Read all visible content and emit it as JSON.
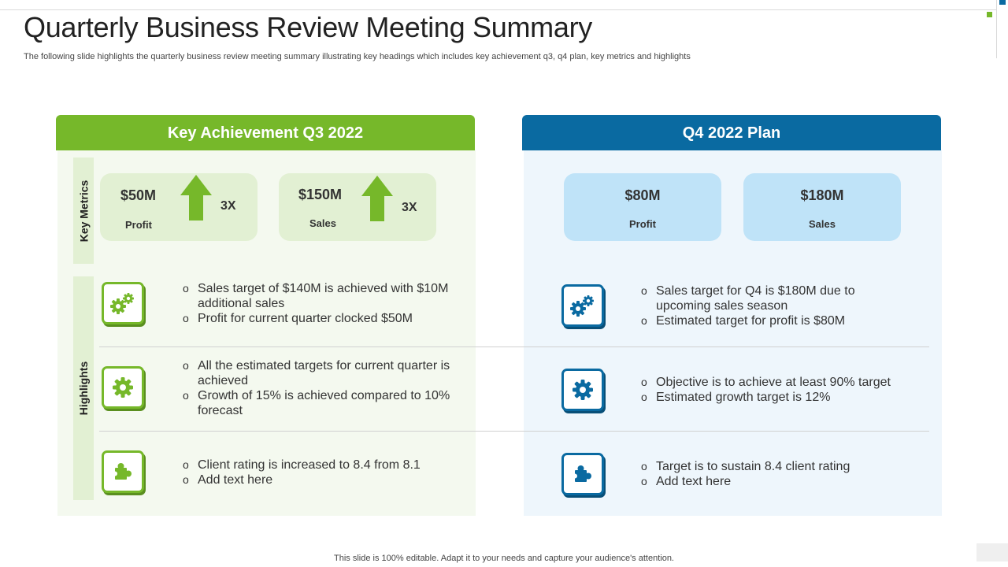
{
  "page": {
    "title": "Quarterly Business Review Meeting Summary",
    "subtitle": "The following slide highlights the quarterly business review meeting summary illustrating key headings which includes key achievement q3, q4 plan, key metrics and highlights",
    "footer": "This slide is 100% editable. Adapt it to your needs and capture your audience's attention."
  },
  "labels": {
    "key_metrics": "Key Metrics",
    "highlights": "Highlights"
  },
  "left": {
    "header": "Key Achievement Q3 2022",
    "metrics": [
      {
        "value": "$50M",
        "label": "Profit",
        "multiplier": "3X"
      },
      {
        "value": "$150M",
        "label": "Sales",
        "multiplier": "3X"
      }
    ],
    "highlights": [
      {
        "icon": "gears-icon",
        "bullets": [
          "Sales target of $140M is achieved with $10M additional sales",
          " Profit for current  quarter clocked $50M"
        ]
      },
      {
        "icon": "gear-icon",
        "bullets": [
          "All the estimated targets for current quarter is achieved",
          "Growth  of 15% is achieved compared to 10% forecast"
        ]
      },
      {
        "icon": "puzzle-icon",
        "bullets": [
          "Client rating is increased to 8.4 from 8.1",
          "Add text here"
        ]
      }
    ]
  },
  "right": {
    "header": "Q4 2022 Plan",
    "metrics": [
      {
        "value": "$80M",
        "label": "Profit"
      },
      {
        "value": "$180M",
        "label": "Sales"
      }
    ],
    "highlights": [
      {
        "icon": "gears-icon",
        "bullets": [
          "Sales target for Q4 is $180M due to upcoming sales season",
          "Estimated target for profit is $80M"
        ]
      },
      {
        "icon": "gear-icon",
        "bullets": [
          "Objective is to achieve at least 90% target",
          "Estimated growth  target is 12%"
        ]
      },
      {
        "icon": "puzzle-icon",
        "bullets": [
          "Target is to sustain 8.4 client rating",
          "Add text here"
        ]
      }
    ]
  },
  "colors": {
    "green": "#76b82a",
    "blue": "#0a6aa1",
    "light_green": "#e2f0d3",
    "light_blue": "#bfe3f8"
  }
}
